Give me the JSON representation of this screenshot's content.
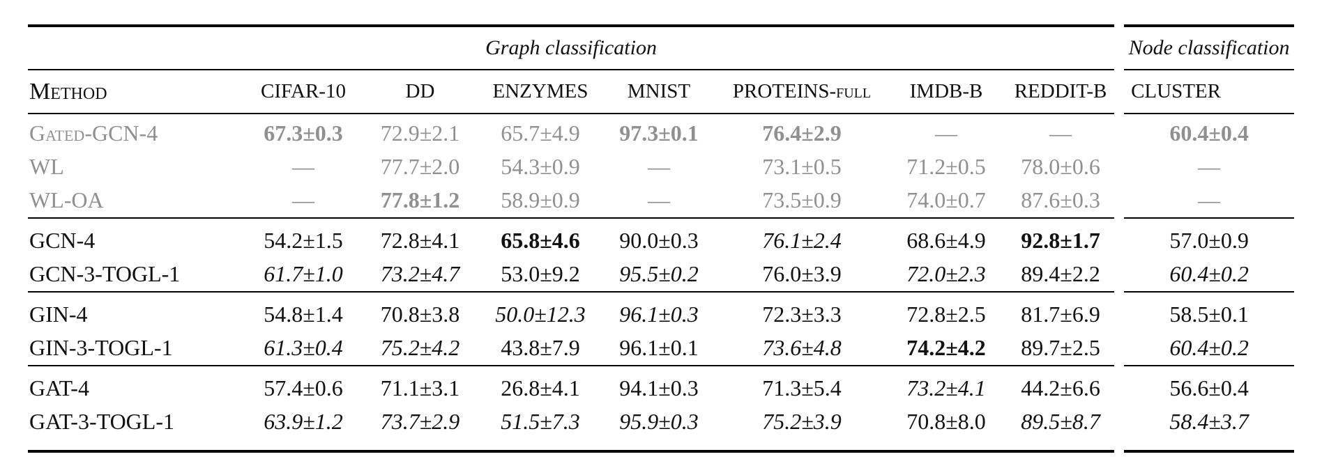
{
  "table": {
    "group_headers": {
      "graph": "Graph classification",
      "node": "Node classification"
    },
    "columns": [
      "Method",
      "CIFAR-10",
      "DD",
      "ENZYMES",
      "MNIST",
      "PROTEINS-full",
      "IMDB-B",
      "REDDIT-B",
      "CLUSTER"
    ],
    "rows": [
      {
        "method": "Gated-GCN-4",
        "group": "baseline",
        "gray": true,
        "cells": [
          {
            "text": "67.3±0.3",
            "style": "bold"
          },
          {
            "text": "72.9±2.1",
            "style": ""
          },
          {
            "text": "65.7±4.9",
            "style": ""
          },
          {
            "text": "97.3±0.1",
            "style": "bold"
          },
          {
            "text": "76.4±2.9",
            "style": "bold"
          },
          {
            "text": "—",
            "style": ""
          },
          {
            "text": "—",
            "style": ""
          },
          {
            "text": "60.4±0.4",
            "style": "bold"
          }
        ]
      },
      {
        "method": "WL",
        "group": "baseline",
        "gray": true,
        "cells": [
          {
            "text": "—",
            "style": ""
          },
          {
            "text": "77.7±2.0",
            "style": ""
          },
          {
            "text": "54.3±0.9",
            "style": ""
          },
          {
            "text": "—",
            "style": ""
          },
          {
            "text": "73.1±0.5",
            "style": ""
          },
          {
            "text": "71.2±0.5",
            "style": ""
          },
          {
            "text": "78.0±0.6",
            "style": ""
          },
          {
            "text": "—",
            "style": ""
          }
        ]
      },
      {
        "method": "WL-OA",
        "group": "baseline",
        "gray": true,
        "cells": [
          {
            "text": "—",
            "style": ""
          },
          {
            "text": "77.8±1.2",
            "style": "bold"
          },
          {
            "text": "58.9±0.9",
            "style": ""
          },
          {
            "text": "—",
            "style": ""
          },
          {
            "text": "73.5±0.9",
            "style": ""
          },
          {
            "text": "74.0±0.7",
            "style": ""
          },
          {
            "text": "87.6±0.3",
            "style": ""
          },
          {
            "text": "—",
            "style": ""
          }
        ]
      },
      {
        "method": "GCN-4",
        "group": "gcn",
        "gray": false,
        "cells": [
          {
            "text": "54.2±1.5",
            "style": ""
          },
          {
            "text": "72.8±4.1",
            "style": ""
          },
          {
            "text": "65.8±4.6",
            "style": "bold"
          },
          {
            "text": "90.0±0.3",
            "style": ""
          },
          {
            "text": "76.1±2.4",
            "style": "italic"
          },
          {
            "text": "68.6±4.9",
            "style": ""
          },
          {
            "text": "92.8±1.7",
            "style": "bold"
          },
          {
            "text": "57.0±0.9",
            "style": ""
          }
        ]
      },
      {
        "method": "GCN-3-TOGL-1",
        "group": "gcn",
        "gray": false,
        "cells": [
          {
            "text": "61.7±1.0",
            "style": "italic"
          },
          {
            "text": "73.2±4.7",
            "style": "italic"
          },
          {
            "text": "53.0±9.2",
            "style": ""
          },
          {
            "text": "95.5±0.2",
            "style": "italic"
          },
          {
            "text": "76.0±3.9",
            "style": ""
          },
          {
            "text": "72.0±2.3",
            "style": "italic"
          },
          {
            "text": "89.4±2.2",
            "style": ""
          },
          {
            "text": "60.4±0.2",
            "style": "italic"
          }
        ]
      },
      {
        "method": "GIN-4",
        "group": "gin",
        "gray": false,
        "cells": [
          {
            "text": "54.8±1.4",
            "style": ""
          },
          {
            "text": "70.8±3.8",
            "style": ""
          },
          {
            "text": "50.0±12.3",
            "style": "italic"
          },
          {
            "text": "96.1±0.3",
            "style": "italic"
          },
          {
            "text": "72.3±3.3",
            "style": ""
          },
          {
            "text": "72.8±2.5",
            "style": ""
          },
          {
            "text": "81.7±6.9",
            "style": ""
          },
          {
            "text": "58.5±0.1",
            "style": ""
          }
        ]
      },
      {
        "method": "GIN-3-TOGL-1",
        "group": "gin",
        "gray": false,
        "cells": [
          {
            "text": "61.3±0.4",
            "style": "italic"
          },
          {
            "text": "75.2±4.2",
            "style": "italic"
          },
          {
            "text": "43.8±7.9",
            "style": ""
          },
          {
            "text": "96.1±0.1",
            "style": ""
          },
          {
            "text": "73.6±4.8",
            "style": "italic"
          },
          {
            "text": "74.2±4.2",
            "style": "bold"
          },
          {
            "text": "89.7±2.5",
            "style": ""
          },
          {
            "text": "60.4±0.2",
            "style": "italic"
          }
        ]
      },
      {
        "method": "GAT-4",
        "group": "gat",
        "gray": false,
        "cells": [
          {
            "text": "57.4±0.6",
            "style": ""
          },
          {
            "text": "71.1±3.1",
            "style": ""
          },
          {
            "text": "26.8±4.1",
            "style": ""
          },
          {
            "text": "94.1±0.3",
            "style": ""
          },
          {
            "text": "71.3±5.4",
            "style": ""
          },
          {
            "text": "73.2±4.1",
            "style": "italic"
          },
          {
            "text": "44.2±6.6",
            "style": ""
          },
          {
            "text": "56.6±0.4",
            "style": ""
          }
        ]
      },
      {
        "method": "GAT-3-TOGL-1",
        "group": "gat",
        "gray": false,
        "cells": [
          {
            "text": "63.9±1.2",
            "style": "italic"
          },
          {
            "text": "73.7±2.9",
            "style": "italic"
          },
          {
            "text": "51.5±7.3",
            "style": "italic"
          },
          {
            "text": "95.9±0.3",
            "style": "italic"
          },
          {
            "text": "75.2±3.9",
            "style": "italic"
          },
          {
            "text": "70.8±8.0",
            "style": ""
          },
          {
            "text": "89.5±8.7",
            "style": "italic"
          },
          {
            "text": "58.4±3.7",
            "style": "italic"
          }
        ]
      }
    ]
  },
  "colors": {
    "text": "#111111",
    "muted_row_text": "#909090",
    "rule": "#000000",
    "background": "#ffffff"
  }
}
